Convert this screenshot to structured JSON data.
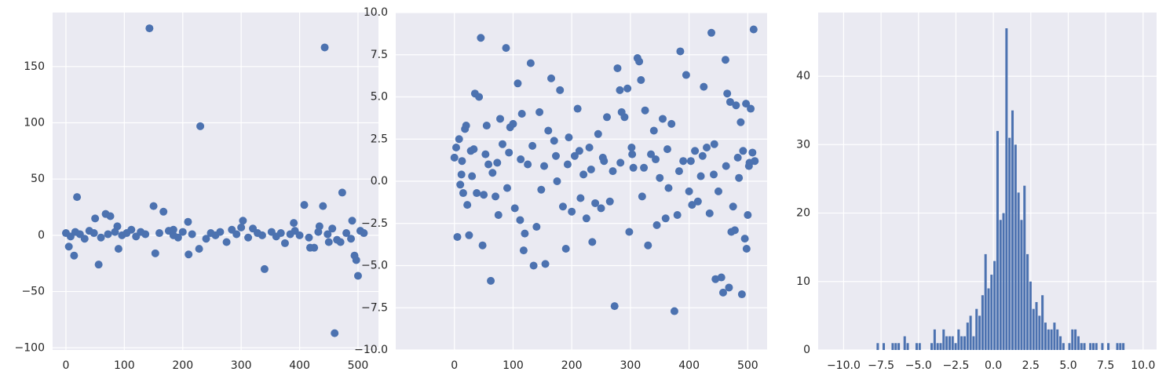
{
  "chart_data": [
    {
      "type": "scatter",
      "color": "#4c72b0",
      "grid": true,
      "xlim": [
        -22.8,
        535
      ],
      "ylim": [
        -101.9,
        198
      ],
      "xticks": [
        0,
        100,
        200,
        300,
        400,
        500
      ],
      "yticks": [
        {
          "value": -100,
          "label": "−100"
        },
        {
          "value": -50,
          "label": "−50"
        },
        0,
        50,
        100,
        150
      ],
      "x": [
        143,
        443,
        230,
        19,
        473,
        408,
        150,
        440,
        167,
        68,
        76,
        50,
        303,
        209,
        490,
        5,
        14,
        56,
        90,
        153,
        210,
        228,
        340,
        418,
        425,
        460,
        494,
        497,
        500,
        375,
        275,
        450,
        470,
        0,
        8,
        16,
        24,
        32,
        40,
        48,
        60,
        72,
        84,
        96,
        104,
        112,
        120,
        128,
        136,
        160,
        176,
        184,
        192,
        200,
        216,
        240,
        248,
        256,
        264,
        284,
        292,
        312,
        320,
        328,
        336,
        352,
        360,
        368,
        384,
        392,
        400,
        416,
        432,
        448,
        456,
        464,
        480,
        488,
        504,
        510,
        88,
        184,
        300,
        390,
        434
      ],
      "values": [
        184,
        167,
        97,
        34,
        38,
        27,
        26,
        26,
        21,
        19,
        17,
        15,
        13,
        12,
        13,
        -10,
        -18,
        -26,
        -12,
        -16,
        -17,
        -12,
        -30,
        -11,
        -11,
        -87,
        -18,
        -22,
        -36,
        -7,
        -6,
        -6,
        -6,
        2,
        -1,
        3,
        1,
        -3,
        4,
        2,
        -2,
        1,
        3,
        0,
        2,
        5,
        -1,
        3,
        1,
        2,
        4,
        0,
        -2,
        3,
        1,
        -3,
        2,
        0,
        3,
        5,
        1,
        -2,
        6,
        2,
        0,
        3,
        -1,
        2,
        1,
        4,
        0,
        -2,
        3,
        1,
        6,
        -4,
        2,
        -3,
        4,
        2,
        8,
        5,
        7,
        11,
        8
      ]
    },
    {
      "type": "scatter",
      "color": "#4c72b0",
      "grid": true,
      "xlim": [
        -100,
        533
      ],
      "ylim": [
        -10,
        10
      ],
      "xticks": [
        0,
        100,
        200,
        300,
        400,
        500
      ],
      "yticks": [
        {
          "value": -10,
          "label": "−10.0"
        },
        {
          "value": -7.5,
          "label": "−7.5"
        },
        {
          "value": -5,
          "label": "−5.0"
        },
        {
          "value": -2.5,
          "label": "−2.5"
        },
        {
          "value": 0,
          "label": "0.0"
        },
        2.5,
        {
          "value": 5,
          "label": "5.0"
        },
        7.5,
        {
          "value": 10,
          "label": "10.0"
        }
      ],
      "x": [
        3,
        5,
        8,
        10,
        12,
        15,
        18,
        20,
        22,
        25,
        28,
        30,
        35,
        38,
        42,
        45,
        48,
        50,
        55,
        58,
        62,
        65,
        70,
        75,
        78,
        82,
        88,
        90,
        95,
        100,
        103,
        108,
        112,
        115,
        118,
        120,
        125,
        130,
        135,
        140,
        145,
        148,
        155,
        160,
        165,
        170,
        175,
        180,
        185,
        190,
        195,
        200,
        205,
        210,
        215,
        220,
        225,
        230,
        235,
        240,
        245,
        250,
        255,
        260,
        265,
        270,
        273,
        278,
        282,
        285,
        290,
        295,
        298,
        302,
        305,
        312,
        315,
        318,
        320,
        325,
        330,
        335,
        340,
        345,
        350,
        355,
        360,
        365,
        370,
        375,
        380,
        385,
        390,
        395,
        400,
        405,
        410,
        415,
        420,
        425,
        430,
        435,
        438,
        442,
        445,
        450,
        455,
        458,
        462,
        465,
        468,
        470,
        472,
        475,
        478,
        480,
        485,
        488,
        490,
        492,
        495,
        497,
        498,
        500,
        502,
        505,
        508,
        510,
        512,
        0,
        13,
        33,
        53,
        73,
        93,
        113,
        133,
        153,
        173,
        193,
        213,
        233,
        253,
        283,
        303,
        323,
        343,
        363,
        383,
        403,
        423,
        443,
        463,
        483,
        503
      ],
      "values": [
        2.0,
        -3.3,
        2.5,
        -0.2,
        0.4,
        -0.7,
        3.1,
        3.3,
        -1.4,
        -3.2,
        1.8,
        0.3,
        5.2,
        -0.7,
        5.0,
        8.5,
        -3.8,
        -0.8,
        3.3,
        1.0,
        -5.9,
        0.5,
        -0.9,
        -2.0,
        3.7,
        2.2,
        7.9,
        -0.4,
        3.2,
        3.4,
        -1.6,
        5.8,
        -2.3,
        4.0,
        -4.1,
        -3.1,
        1.0,
        7.0,
        -5.0,
        -2.7,
        4.1,
        -0.5,
        -4.9,
        3.0,
        6.1,
        2.4,
        0.0,
        5.4,
        -1.5,
        -4.0,
        2.6,
        -1.8,
        1.5,
        4.3,
        -1.0,
        0.4,
        -2.2,
        2.0,
        -3.6,
        -1.3,
        2.8,
        -1.6,
        1.2,
        3.8,
        -1.2,
        0.6,
        -7.4,
        6.7,
        5.4,
        4.1,
        3.8,
        5.5,
        -3.0,
        2.0,
        0.8,
        7.3,
        7.1,
        6.0,
        -0.9,
        4.2,
        -3.8,
        1.6,
        3.0,
        -2.6,
        0.2,
        3.7,
        -2.2,
        -0.4,
        3.4,
        -7.7,
        -2.0,
        7.7,
        1.2,
        6.3,
        -0.6,
        -1.4,
        1.8,
        -1.2,
        0.3,
        5.6,
        2.0,
        -1.9,
        8.8,
        0.4,
        -5.8,
        -0.6,
        -5.7,
        -6.6,
        7.2,
        5.2,
        -6.3,
        4.7,
        -3.0,
        -1.5,
        -2.9,
        4.5,
        0.2,
        3.5,
        -6.7,
        1.8,
        -3.4,
        4.6,
        -4.0,
        -2.0,
        0.9,
        4.3,
        1.7,
        9.0,
        1.2,
        1.4,
        1.2,
        1.9,
        1.6,
        1.1,
        1.7,
        1.3,
        2.1,
        0.9,
        1.5,
        1.0,
        1.8,
        0.7,
        1.4,
        1.1,
        1.6,
        0.8,
        1.3,
        1.9,
        0.6,
        1.2,
        1.5,
        2.2,
        0.9,
        1.4,
        1.1
      ]
    },
    {
      "type": "histogram",
      "color": "#4c72b0",
      "grid": true,
      "xlim": [
        -11.7,
        10.9
      ],
      "ylim": [
        0,
        49.3
      ],
      "xticks": [
        {
          "value": -10,
          "label": "−10.0"
        },
        {
          "value": -7.5,
          "label": "−7.5"
        },
        {
          "value": -5,
          "label": "−5.0"
        },
        {
          "value": -2.5,
          "label": "−2.5"
        },
        {
          "value": 0,
          "label": "0.0"
        },
        2.5,
        {
          "value": 5,
          "label": "5.0"
        },
        7.5,
        {
          "value": 10,
          "label": "10.0"
        }
      ],
      "yticks": [
        0,
        10,
        20,
        30,
        40
      ],
      "bins": [
        -10,
        -9.8,
        -9.6,
        -9.4,
        -9.2,
        -9,
        -8.8,
        -8.6,
        -8.4,
        -8.2,
        -8,
        -7.8,
        -7.6,
        -7.4,
        -7.2,
        -7,
        -6.8,
        -6.6,
        -6.4,
        -6.2,
        -6,
        -5.8,
        -5.6,
        -5.4,
        -5.2,
        -5,
        -4.8,
        -4.6,
        -4.4,
        -4.2,
        -4,
        -3.8,
        -3.6,
        -3.4,
        -3.2,
        -3,
        -2.8,
        -2.6,
        -2.4,
        -2.2,
        -2,
        -1.8,
        -1.6,
        -1.4,
        -1.2,
        -1,
        -0.8,
        -0.6,
        -0.4,
        -0.2,
        0,
        0.2,
        0.4,
        0.6,
        0.8,
        1,
        1.2,
        1.4,
        1.6,
        1.8,
        2,
        2.2,
        2.4,
        2.6,
        2.8,
        3,
        3.2,
        3.4,
        3.6,
        3.8,
        4,
        4.2,
        4.4,
        4.6,
        4.8,
        5,
        5.2,
        5.4,
        5.6,
        5.8,
        6,
        6.2,
        6.4,
        6.6,
        6.8,
        7,
        7.2,
        7.4,
        7.6,
        7.8,
        8,
        8.2,
        8.4,
        8.6,
        8.8,
        9,
        9.2,
        9.4,
        9.6,
        9.8,
        10
      ],
      "values": [
        0,
        0,
        0,
        0,
        0,
        0,
        0,
        0,
        0,
        0,
        0,
        1,
        0,
        1,
        0,
        0,
        1,
        1,
        1,
        0,
        2,
        1,
        0,
        0,
        1,
        1,
        0,
        0,
        0,
        1,
        3,
        1,
        1,
        3,
        2,
        2,
        2,
        1,
        3,
        2,
        2,
        4,
        5,
        2,
        6,
        5,
        8,
        14,
        9,
        11,
        13,
        32,
        19,
        20,
        47,
        31,
        35,
        30,
        23,
        19,
        24,
        14,
        10,
        6,
        7,
        5,
        8,
        4,
        3,
        3,
        4,
        3,
        2,
        1,
        0,
        1,
        3,
        3,
        2,
        1,
        1,
        0,
        1,
        1,
        1,
        0,
        1,
        0,
        1,
        0,
        0,
        1,
        1,
        1,
        0,
        0,
        0,
        0,
        0,
        0
      ]
    }
  ]
}
